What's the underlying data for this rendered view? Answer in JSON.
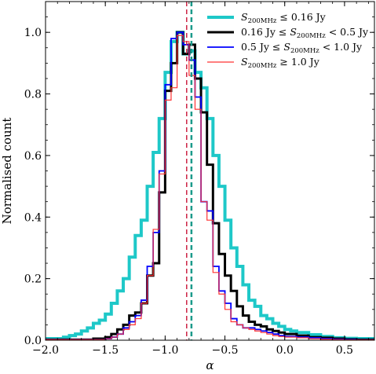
{
  "chart_data": {
    "type": "step-histogram",
    "xlabel": "α",
    "ylabel": "Normalised count",
    "xlim": [
      -2.0,
      0.75
    ],
    "ylim": [
      0.0,
      1.1
    ],
    "x_ticks": [
      -2.0,
      -1.5,
      -1.0,
      -0.5,
      0.0,
      0.5
    ],
    "x_tick_labels": [
      "−2.0",
      "−1.5",
      "−1.0",
      "−0.5",
      "0.0",
      "0.5"
    ],
    "y_ticks": [
      0.0,
      0.2,
      0.4,
      0.6,
      0.8,
      1.0
    ],
    "y_tick_labels": [
      "0.0",
      "0.2",
      "0.4",
      "0.6",
      "0.8",
      "1.0"
    ],
    "legend_position": "top-right",
    "series": [
      {
        "name": "S200MHz ≤ 0.16 Jy",
        "legend": {
          "pre": "",
          "sub_var": "S",
          "sub": "200MHz",
          "post": " ≤ 0.16 Jy"
        },
        "color": "#1ec8c8",
        "width": 4,
        "x": [
          -2.0,
          -1.85,
          -1.8,
          -1.75,
          -1.7,
          -1.65,
          -1.6,
          -1.55,
          -1.5,
          -1.45,
          -1.4,
          -1.35,
          -1.3,
          -1.25,
          -1.2,
          -1.15,
          -1.1,
          -1.05,
          -1.0,
          -0.95,
          -0.9,
          -0.85,
          -0.8,
          -0.75,
          -0.7,
          -0.65,
          -0.6,
          -0.55,
          -0.5,
          -0.45,
          -0.4,
          -0.35,
          -0.3,
          -0.25,
          -0.2,
          -0.15,
          -0.1,
          -0.05,
          0.0,
          0.05,
          0.1,
          0.2,
          0.3,
          0.4,
          0.5,
          0.6,
          0.75
        ],
        "y": [
          0.005,
          0.01,
          0.015,
          0.02,
          0.03,
          0.04,
          0.055,
          0.065,
          0.085,
          0.12,
          0.16,
          0.2,
          0.27,
          0.34,
          0.39,
          0.5,
          0.61,
          0.72,
          0.87,
          0.97,
          1.0,
          0.93,
          0.94,
          0.87,
          0.82,
          0.72,
          0.6,
          0.5,
          0.39,
          0.3,
          0.24,
          0.18,
          0.13,
          0.11,
          0.08,
          0.07,
          0.055,
          0.045,
          0.035,
          0.03,
          0.025,
          0.018,
          0.012,
          0.008,
          0.006,
          0.005
        ],
        "edges_end": 0.75
      },
      {
        "name": "0.16 Jy ≤ S200MHz < 0.5 Jy",
        "legend": {
          "pre": "0.16 Jy ≤ ",
          "sub_var": "S",
          "sub": "200MHz",
          "post": " < 0.5 Jy"
        },
        "color": "#000000",
        "width": 3,
        "x": [
          -2.0,
          -1.6,
          -1.5,
          -1.45,
          -1.4,
          -1.35,
          -1.3,
          -1.25,
          -1.2,
          -1.15,
          -1.1,
          -1.05,
          -1.0,
          -0.95,
          -0.9,
          -0.85,
          -0.8,
          -0.75,
          -0.7,
          -0.65,
          -0.6,
          -0.55,
          -0.5,
          -0.45,
          -0.4,
          -0.35,
          -0.3,
          -0.25,
          -0.2,
          -0.15,
          -0.1,
          -0.05,
          0.0,
          0.1,
          0.2,
          0.3,
          0.4,
          0.5,
          0.6
        ],
        "y": [
          0.002,
          0.005,
          0.01,
          0.02,
          0.035,
          0.05,
          0.08,
          0.09,
          0.12,
          0.21,
          0.25,
          0.48,
          0.81,
          0.9,
          1.0,
          0.93,
          0.96,
          0.85,
          0.74,
          0.57,
          0.38,
          0.28,
          0.21,
          0.16,
          0.11,
          0.08,
          0.06,
          0.05,
          0.045,
          0.035,
          0.03,
          0.025,
          0.02,
          0.015,
          0.01,
          0.008,
          0.005,
          0.003,
          0.002
        ],
        "edges_end": 0.75
      },
      {
        "name": "0.5 Jy ≤ S200MHz < 1.0 Jy",
        "legend": {
          "pre": "0.5 Jy ≤ ",
          "sub_var": "S",
          "sub": "200MHz",
          "post": " < 1.0 Jy"
        },
        "color": "#0000ff",
        "width": 1.8,
        "x": [
          -2.0,
          -1.5,
          -1.45,
          -1.4,
          -1.35,
          -1.3,
          -1.25,
          -1.2,
          -1.15,
          -1.1,
          -1.05,
          -1.0,
          -0.95,
          -0.9,
          -0.85,
          -0.8,
          -0.75,
          -0.7,
          -0.65,
          -0.6,
          -0.55,
          -0.5,
          -0.45,
          -0.4,
          -0.35,
          -0.3,
          -0.25,
          -0.2,
          -0.15,
          -0.1,
          -0.05,
          0.0,
          0.1,
          0.2,
          0.3,
          0.4,
          0.5,
          0.6
        ],
        "y": [
          0.002,
          0.005,
          0.01,
          0.02,
          0.04,
          0.06,
          0.08,
          0.13,
          0.24,
          0.35,
          0.55,
          0.83,
          0.98,
          1.0,
          0.96,
          0.91,
          0.79,
          0.45,
          0.42,
          0.24,
          0.16,
          0.12,
          0.07,
          0.05,
          0.04,
          0.04,
          0.035,
          0.03,
          0.025,
          0.02,
          0.015,
          0.012,
          0.01,
          0.008,
          0.005,
          0.003,
          0.002,
          0.001
        ],
        "edges_end": 0.75
      },
      {
        "name": "S200MHz ≥ 1.0 Jy",
        "legend": {
          "pre": "",
          "sub_var": "S",
          "sub": "200MHz",
          "post": " ≥ 1.0 Jy"
        },
        "color": "#ff3333",
        "width": 1.2,
        "x": [
          -2.0,
          -1.5,
          -1.45,
          -1.4,
          -1.35,
          -1.3,
          -1.25,
          -1.2,
          -1.15,
          -1.1,
          -1.05,
          -1.0,
          -0.95,
          -0.9,
          -0.85,
          -0.8,
          -0.75,
          -0.7,
          -0.65,
          -0.6,
          -0.55,
          -0.5,
          -0.45,
          -0.4,
          -0.35,
          -0.3,
          -0.25,
          -0.2,
          -0.15,
          -0.1,
          -0.05,
          0.0,
          0.1,
          0.2,
          0.3,
          0.4,
          0.5,
          0.6
        ],
        "y": [
          0.002,
          0.005,
          0.01,
          0.02,
          0.035,
          0.05,
          0.07,
          0.12,
          0.21,
          0.36,
          0.54,
          0.78,
          0.82,
          0.99,
          0.97,
          0.86,
          0.75,
          0.45,
          0.39,
          0.22,
          0.15,
          0.1,
          0.06,
          0.05,
          0.04,
          0.035,
          0.03,
          0.025,
          0.02,
          0.015,
          0.012,
          0.01,
          0.008,
          0.005,
          0.003,
          0.002,
          0.001,
          0.001
        ],
        "edges_end": 0.75
      }
    ],
    "vlines": [
      {
        "x": -0.82,
        "color": "#cc2244",
        "style": "dashed"
      },
      {
        "x": -0.78,
        "color": "#1a9a8a",
        "style": "dashed"
      }
    ]
  }
}
